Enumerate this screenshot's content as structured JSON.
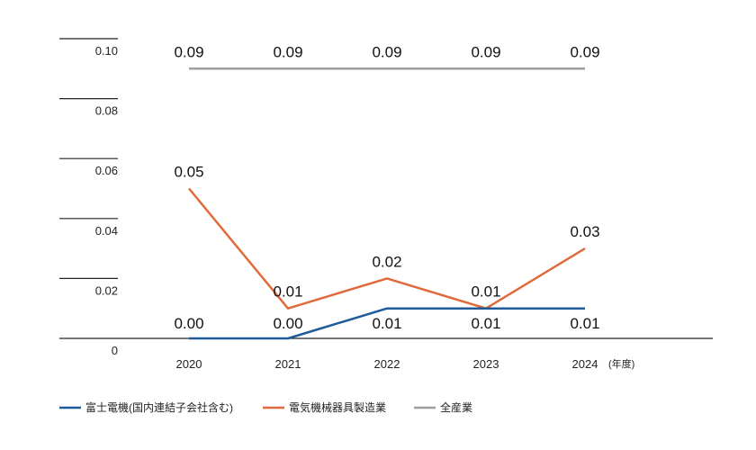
{
  "chart_data": {
    "type": "line",
    "title": "",
    "xlabel": "",
    "ylabel": "",
    "x_unit": "(年度)",
    "categories": [
      "2020",
      "2021",
      "2022",
      "2023",
      "2024"
    ],
    "ylim": [
      0,
      0.1
    ],
    "y_ticks": [
      "0",
      "0.02",
      "0.04",
      "0.06",
      "0.08",
      "0.10"
    ],
    "legend_position": "bottom-left",
    "series": [
      {
        "name": "富士電機(国内連結子会社含む)",
        "color": "#1f5c99",
        "values": [
          0.0,
          0.0,
          0.01,
          0.01,
          0.01
        ],
        "labels": [
          "0.00",
          "0.00",
          "0.01",
          "0.01",
          "0.01"
        ]
      },
      {
        "name": "電気機械器具製造業",
        "color": "#e06a3b",
        "values": [
          0.05,
          0.01,
          0.02,
          0.01,
          0.03
        ],
        "labels": [
          "0.05",
          "0.01",
          "0.02",
          "0.01",
          "0.03"
        ]
      },
      {
        "name": "全産業",
        "color": "#9e9e9e",
        "values": [
          0.09,
          0.09,
          0.09,
          0.09,
          0.09
        ],
        "labels": [
          "0.09",
          "0.09",
          "0.09",
          "0.09",
          "0.09"
        ]
      }
    ]
  }
}
